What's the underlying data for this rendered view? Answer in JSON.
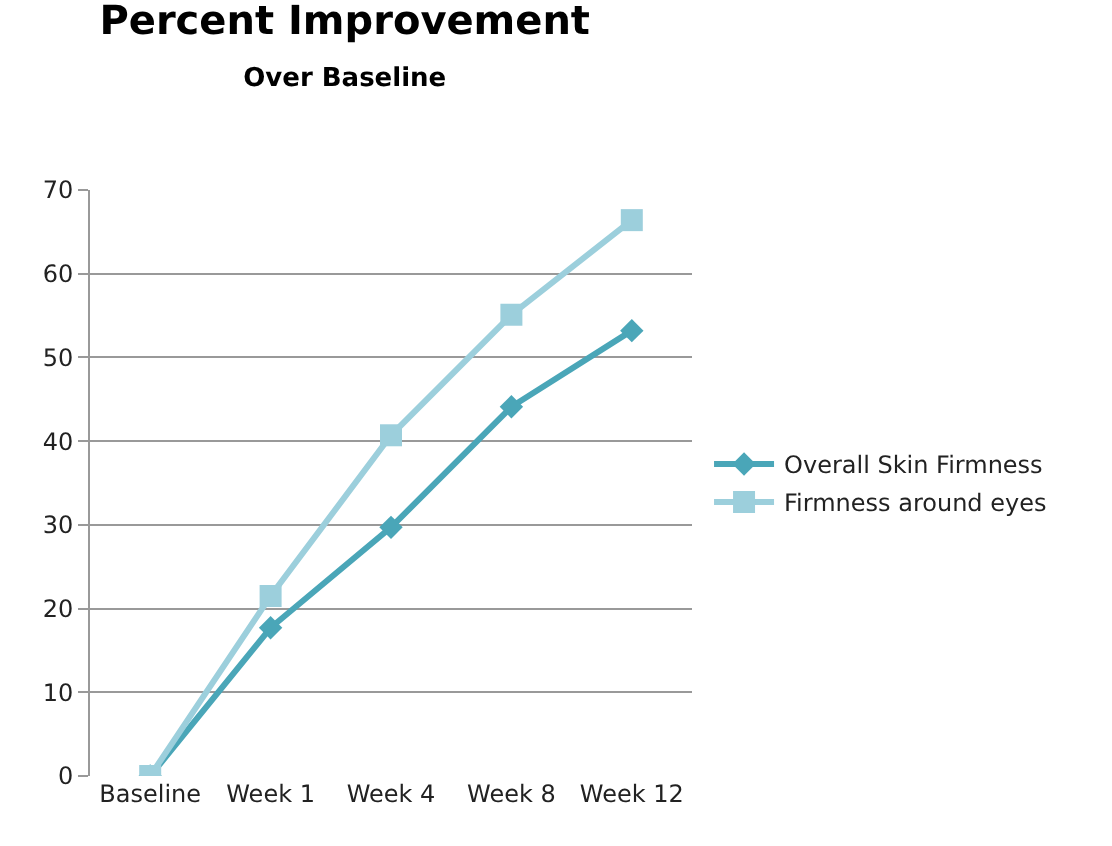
{
  "chart_data": {
    "type": "line",
    "title": "Percent Improvement",
    "subtitle": "Over Baseline",
    "categories": [
      "Baseline",
      "Week 1",
      "Week 4",
      "Week 8",
      "Week 12"
    ],
    "series": [
      {
        "name": "Overall Skin Firmness",
        "color": "#4aa6b8",
        "marker": "diamond",
        "values": [
          0,
          17.7,
          29.7,
          44.1,
          53.2
        ]
      },
      {
        "name": "Firmness around eyes",
        "color": "#9ccfdc",
        "marker": "square",
        "values": [
          0,
          21.5,
          40.7,
          55.1,
          66.4
        ]
      }
    ],
    "ylim": [
      0,
      70
    ],
    "yticks": [
      0,
      10,
      20,
      30,
      40,
      50,
      60,
      70
    ],
    "grid": "y",
    "legend": "right"
  }
}
